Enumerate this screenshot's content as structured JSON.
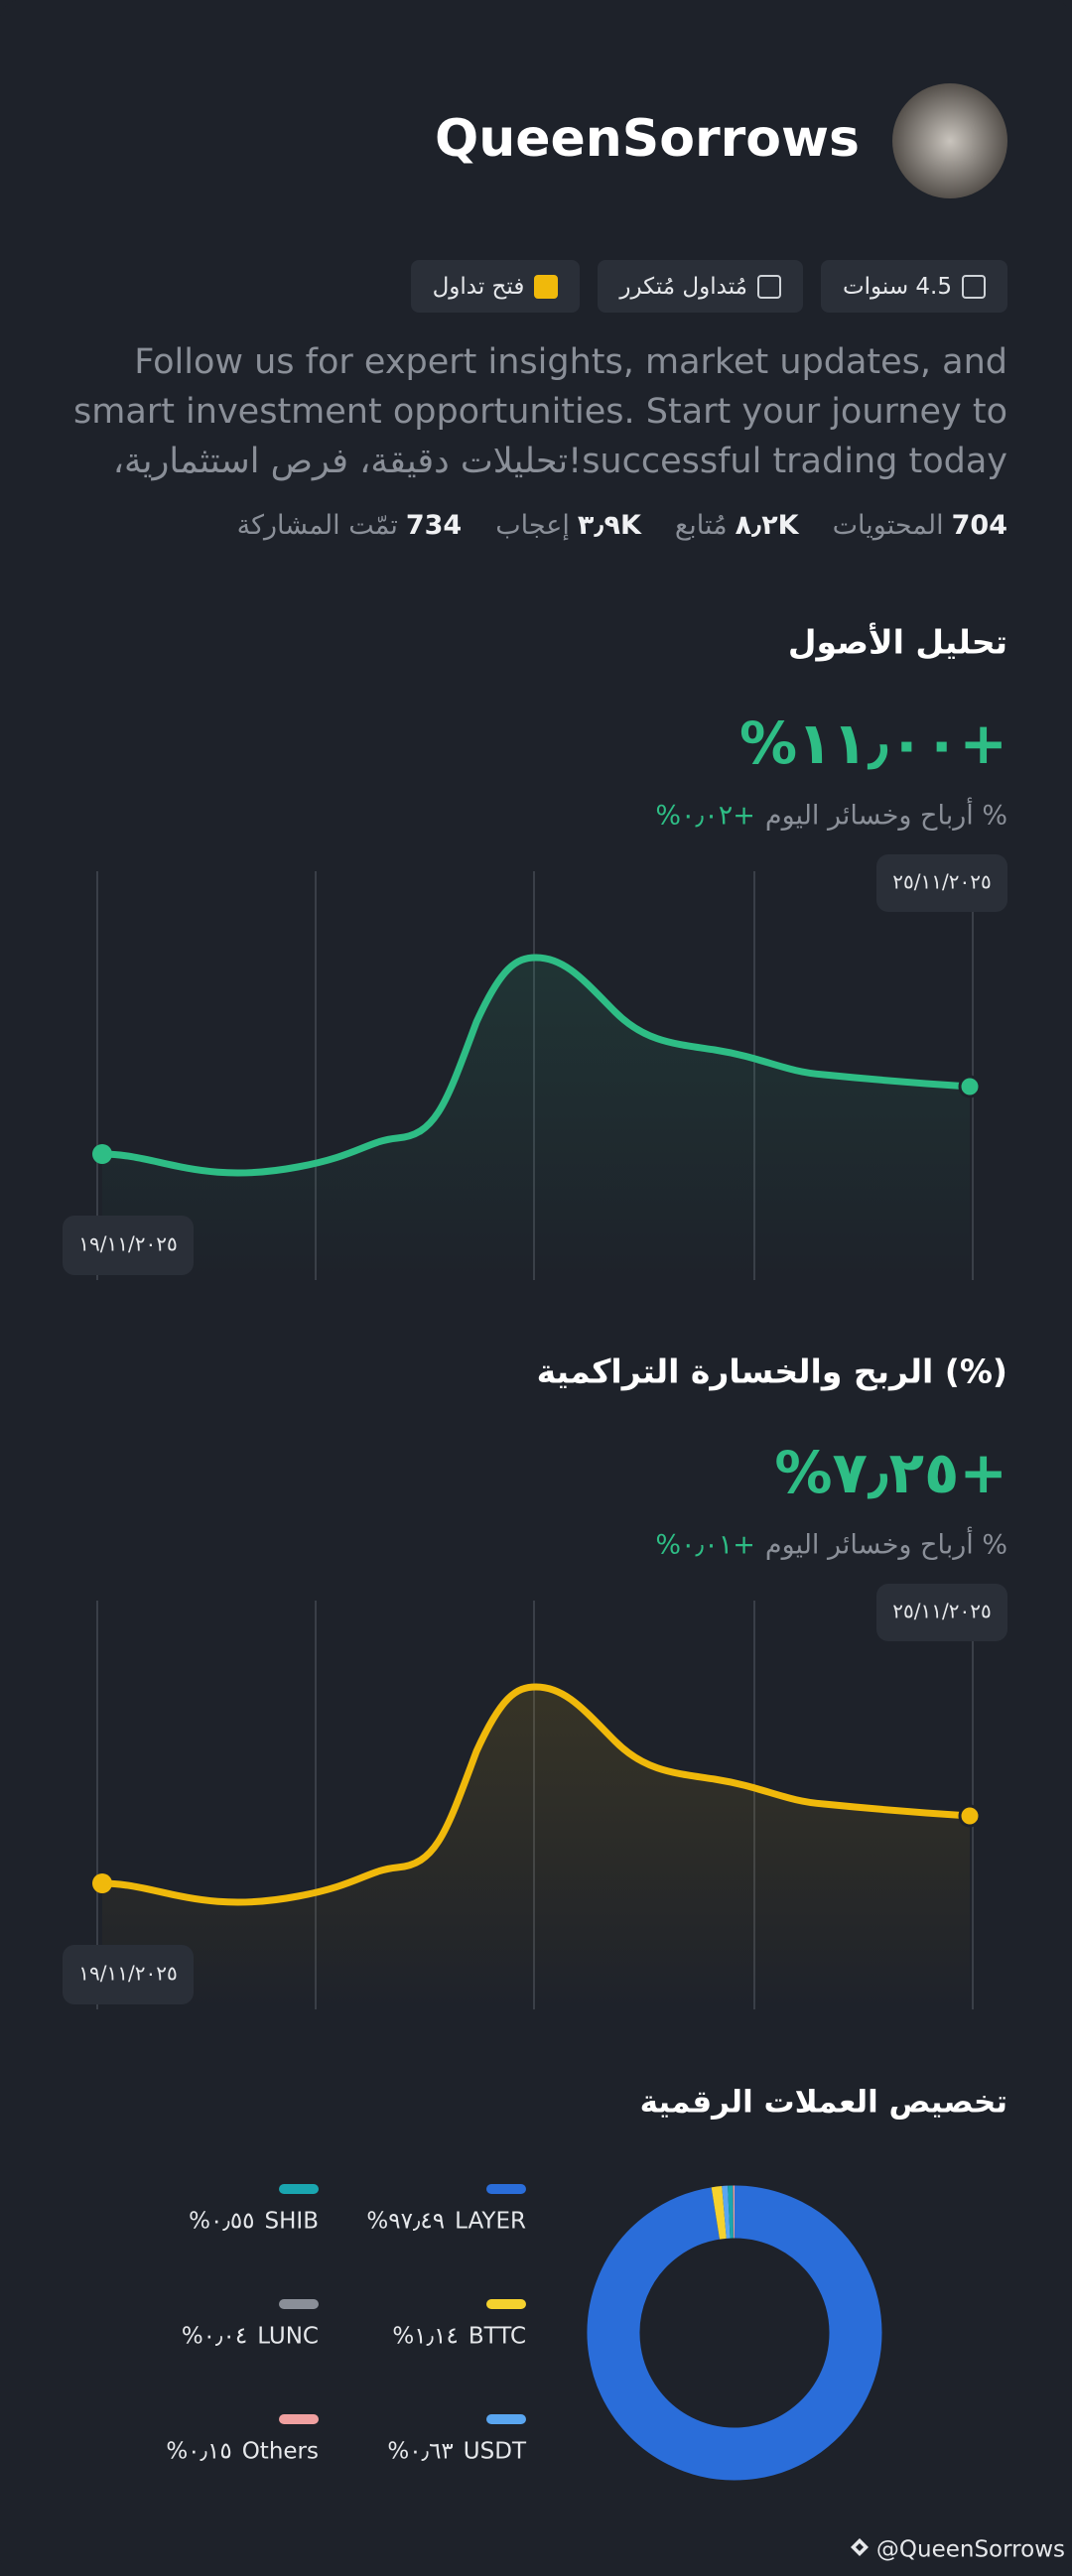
{
  "profile": {
    "name": "QueenSorrows",
    "badges": [
      "4.5 سنوات",
      "مُتداول مُتكرر",
      "فتح تداول"
    ],
    "bio": "Follow us for expert insights, market updates, and smart investment opportunities. Start your journey to successful trading today!تحليلات دقيقة، فرص استثمارية،",
    "stats": [
      {
        "value": "734",
        "label": "تمّت المشاركة"
      },
      {
        "value": "٣٫٩K",
        "label": "إعجاب"
      },
      {
        "value": "٨٫٢K",
        "label": "مُتابع"
      },
      {
        "value": "704",
        "label": "المحتويات"
      }
    ]
  },
  "asset_analysis": {
    "title": "تحليل الأصول",
    "value": "%١١٫٠٠+",
    "today_label": "أرباح وخسائر اليوم %",
    "today_value": "%٠٫٠٢+",
    "end_date": "٢٥/١١/٢٠٢٥",
    "start_date": "١٩/١١/٢٠٢٥"
  },
  "cumulative_pnl": {
    "title": "الربح والخسارة التراكمية (%)",
    "value": "%٧٫٢٥+",
    "today_label": "أرباح وخسائر اليوم %",
    "today_value": "%٠٫٠١+",
    "end_date": "٢٥/١١/٢٠٢٥",
    "start_date": "١٩/١١/٢٠٢٥"
  },
  "allocation": {
    "title": "تخصيص العملات الرقمية",
    "type": "donut",
    "items": [
      {
        "name": "LAYER",
        "value": 97.49,
        "label": "%٩٧٫٤٩",
        "color": "#2a6dd9"
      },
      {
        "name": "BTTC",
        "value": 1.14,
        "label": "%١٫١٤",
        "color": "#f5d22e"
      },
      {
        "name": "USDT",
        "value": 0.63,
        "label": "%٠٫٦٣",
        "color": "#5aa6f0"
      },
      {
        "name": "SHIB",
        "value": 0.55,
        "label": "%٠٫٥٥",
        "color": "#1aa6b0"
      },
      {
        "name": "LUNC",
        "value": 0.04,
        "label": "%٠٫٠٤",
        "color": "#8a8f98"
      },
      {
        "name": "Others",
        "value": 0.15,
        "label": "%٠٫١٥",
        "color": "#f0a0a0"
      }
    ]
  },
  "footer": "@QueenSorrows"
}
